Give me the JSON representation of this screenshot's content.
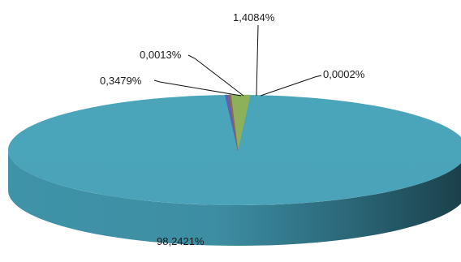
{
  "chart_data": {
    "type": "pie",
    "title": "",
    "style": "3d",
    "slices": [
      {
        "label": "98,2421%",
        "value": 98.2421,
        "color": "#4aa3b9"
      },
      {
        "label": "1,4084%",
        "value": 1.4084,
        "color": "#8db05a"
      },
      {
        "label": "0,3479%",
        "value": 0.3479,
        "color": "#5b63ad"
      },
      {
        "label": "0,0013%",
        "value": 0.0013,
        "color": "#8a4a9a"
      },
      {
        "label": "0,0002%",
        "value": 0.0002,
        "color": "#9a6a40"
      }
    ],
    "legend": "none"
  }
}
